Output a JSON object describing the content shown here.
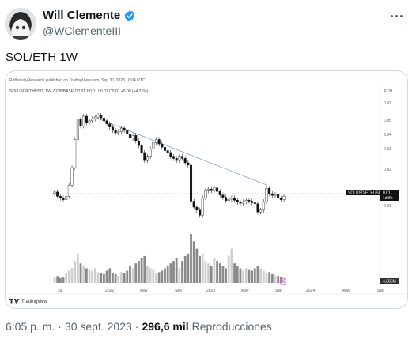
{
  "tweet": {
    "display_name": "Will Clemente",
    "handle": "@WClementeIII",
    "text": "SOL/ETH 1W",
    "time": "6:05 p. m.",
    "separator": "·",
    "date": "30 sept. 2023",
    "views_count": "296,6 mil",
    "views_label": "Reproducciones",
    "verified_icon": "verified-badge-icon",
    "more_icon": "more-options-icon"
  },
  "chart_header": {
    "published": "ReflexivityResearch published on TradingView.com, Sep 30, 2023 16:04 UTC",
    "symbol_line": "SOLUSD/ETHUSD, 1W, COINBASE O0.01 H0.01 L0.01 C0.01 +0.00 (+4.31%)",
    "currency": "ETH",
    "price_label": "SOLUSD/ETHUSD",
    "price_value": "0.01",
    "countdown": "1d 8h",
    "volume_value": "4.385M",
    "brand": "TradingView"
  },
  "chart_data": {
    "type": "candlestick",
    "x_tick_labels": [
      "Jul",
      "2022",
      "May",
      "Sep",
      "2023",
      "May",
      "Sep",
      "2024",
      "May",
      "Sep"
    ],
    "y_tick_labels": [
      "0.07",
      "0.05",
      "0.04",
      "0.03",
      "0.02",
      "0.01",
      "0.01"
    ],
    "y_scale": "log",
    "trendline": "descending, from 2021 high to 2023 high",
    "closes": [
      0.0115,
      0.0105,
      0.0101,
      0.0098,
      0.0105,
      0.0132,
      0.019,
      0.034,
      0.052,
      0.045,
      0.055,
      0.048,
      0.05,
      0.052,
      0.054,
      0.056,
      0.053,
      0.05,
      0.047,
      0.044,
      0.041,
      0.039,
      0.04,
      0.043,
      0.041,
      0.038,
      0.035,
      0.037,
      0.033,
      0.03,
      0.026,
      0.022,
      0.024,
      0.028,
      0.032,
      0.034,
      0.031,
      0.029,
      0.027,
      0.026,
      0.024,
      0.023,
      0.022,
      0.024,
      0.023,
      0.021,
      0.02,
      0.0095,
      0.0084,
      0.0079,
      0.0071,
      0.0102,
      0.0118,
      0.0122,
      0.0118,
      0.0125,
      0.0116,
      0.0108,
      0.0103,
      0.0096,
      0.0099,
      0.0102,
      0.0097,
      0.0093,
      0.0091,
      0.0094,
      0.0097,
      0.0095,
      0.0092,
      0.009,
      0.0076,
      0.0079,
      0.0094,
      0.0124,
      0.0111,
      0.0107,
      0.0109,
      0.0101,
      0.0098,
      0.0105
    ],
    "volumes": [
      0.12,
      0.14,
      0.1,
      0.11,
      0.2,
      0.25,
      0.3,
      0.45,
      0.6,
      0.4,
      0.35,
      0.3,
      0.28,
      0.25,
      0.3,
      0.22,
      0.2,
      0.18,
      0.25,
      0.3,
      0.2,
      0.18,
      0.15,
      0.22,
      0.2,
      0.25,
      0.35,
      0.3,
      0.4,
      0.45,
      0.5,
      0.55,
      0.35,
      0.3,
      0.28,
      0.2,
      0.22,
      0.25,
      0.3,
      0.35,
      0.4,
      0.45,
      0.5,
      0.3,
      0.45,
      0.55,
      0.6,
      1.0,
      0.85,
      0.7,
      0.55,
      0.6,
      0.45,
      0.4,
      0.35,
      0.5,
      0.45,
      0.4,
      0.35,
      0.3,
      0.55,
      0.7,
      0.4,
      0.35,
      0.3,
      0.25,
      0.3,
      0.28,
      0.25,
      0.3,
      0.35,
      0.3,
      0.25,
      0.2,
      0.22,
      0.18,
      0.15,
      0.14,
      0.12,
      0.1
    ]
  }
}
